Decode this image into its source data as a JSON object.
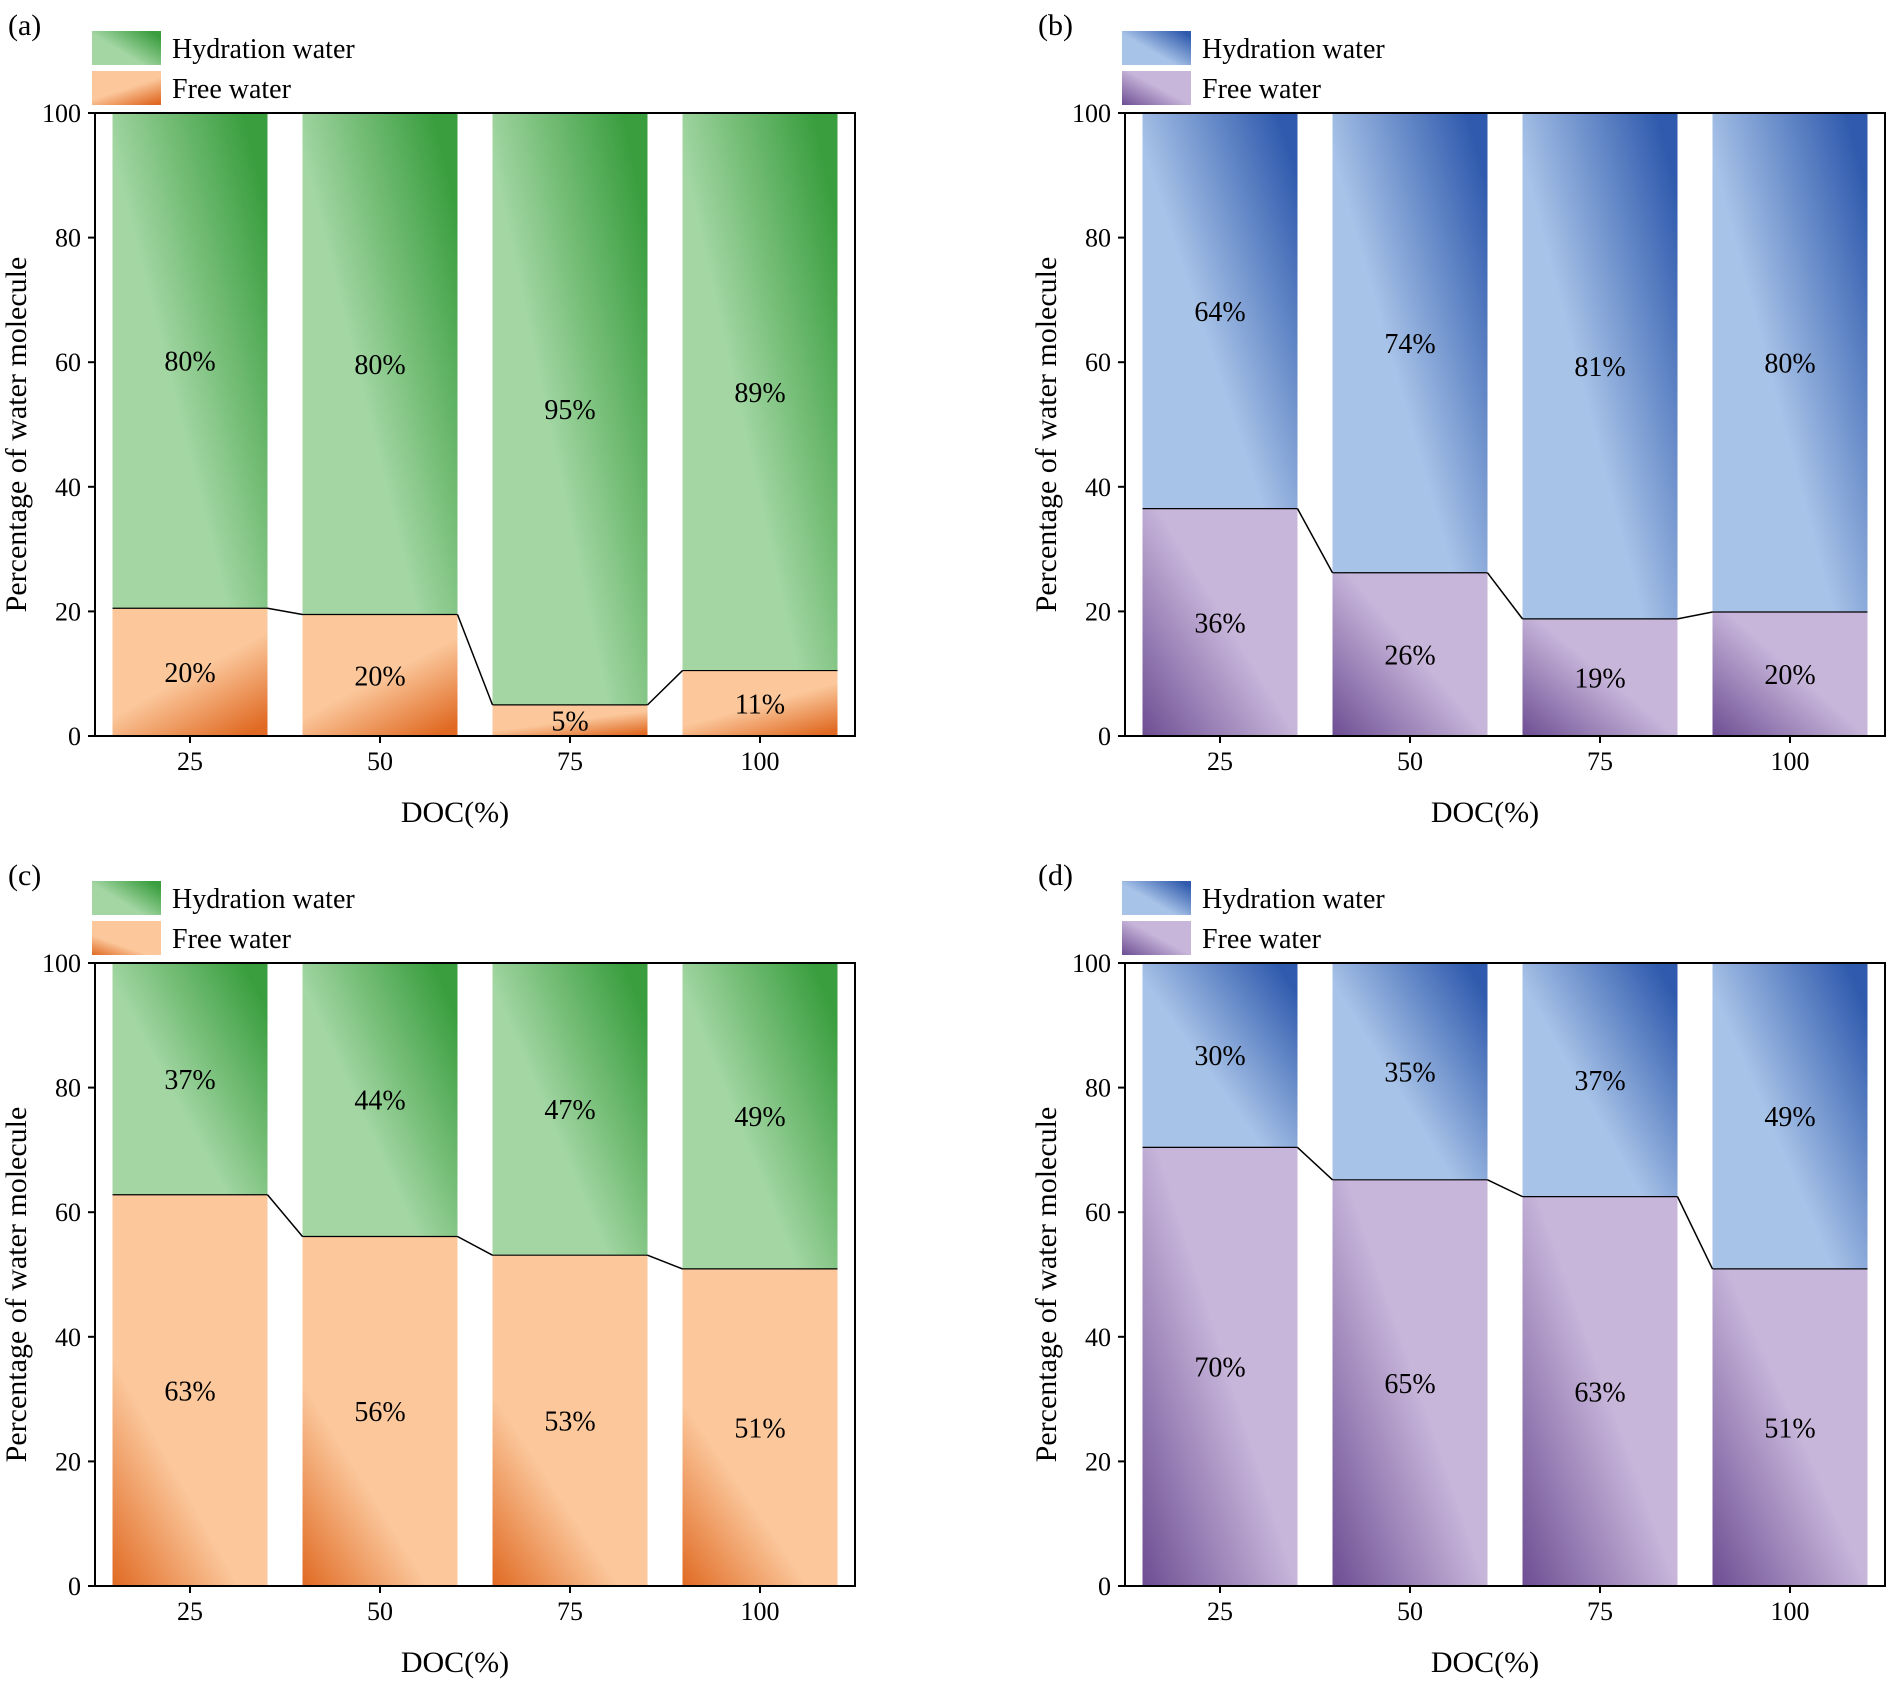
{
  "figure": {
    "caption": ""
  },
  "colors": {
    "green_light": "#a3d6a3",
    "green_dark": "#3a9e3f",
    "orange_light": "#fbc79b",
    "orange_dark": "#e06a23",
    "blue_light": "#a8c3e8",
    "blue_dark": "#2f5aad",
    "purple_light": "#c7b5da",
    "purple_dark": "#6d4e93",
    "axis": "#000000",
    "text": "#000000"
  },
  "chart_data": [
    {
      "panel_label": "(a)",
      "type": "bar",
      "stacked": true,
      "normalized": true,
      "theme": "green-orange",
      "categories": [
        "25",
        "50",
        "75",
        "100"
      ],
      "xlabel": "DOC(%)",
      "ylabel": "Percentage of water molecule",
      "ylim": [
        0,
        100
      ],
      "yticks": [
        "0",
        "20",
        "40",
        "60",
        "80",
        "100"
      ],
      "legend_position": "top-left",
      "series": [
        {
          "name": "Free water",
          "values": [
            20.5,
            19.5,
            5,
            10.5
          ],
          "labels": [
            "20%",
            "20%",
            "5%",
            "11%"
          ]
        },
        {
          "name": "Hydration water",
          "values": [
            79.5,
            80.5,
            95,
            89.5
          ],
          "labels": [
            "80%",
            "80%",
            "95%",
            "89%"
          ]
        }
      ]
    },
    {
      "panel_label": "(b)",
      "type": "bar",
      "stacked": true,
      "normalized": true,
      "theme": "blue-purple",
      "categories": [
        "25",
        "50",
        "75",
        "100"
      ],
      "xlabel": "DOC(%)",
      "ylabel": "Percentage of water molecule",
      "ylim": [
        0,
        100
      ],
      "yticks": [
        "0",
        "20",
        "40",
        "60",
        "80",
        "100"
      ],
      "legend_position": "top-left",
      "series": [
        {
          "name": "Free water",
          "values": [
            36.5,
            26.2,
            18.8,
            19.9
          ],
          "labels": [
            "36%",
            "26%",
            "19%",
            "20%"
          ]
        },
        {
          "name": "Hydration water",
          "values": [
            63.5,
            73.8,
            81.2,
            80.1
          ],
          "labels": [
            "64%",
            "74%",
            "81%",
            "80%"
          ]
        }
      ]
    },
    {
      "panel_label": "(c)",
      "type": "bar",
      "stacked": true,
      "normalized": true,
      "theme": "green-orange",
      "categories": [
        "25",
        "50",
        "75",
        "100"
      ],
      "xlabel": "DOC(%)",
      "ylabel": "Percentage of water molecule",
      "ylim": [
        0,
        100
      ],
      "yticks": [
        "0",
        "20",
        "40",
        "60",
        "80",
        "100"
      ],
      "legend_position": "top-left",
      "series": [
        {
          "name": "Free water",
          "values": [
            62.8,
            56.1,
            53.1,
            50.9
          ],
          "labels": [
            "63%",
            "56%",
            "53%",
            "51%"
          ]
        },
        {
          "name": "Hydration water",
          "values": [
            37.2,
            43.9,
            46.9,
            49.1
          ],
          "labels": [
            "37%",
            "44%",
            "47%",
            "49%"
          ]
        }
      ]
    },
    {
      "panel_label": "(d)",
      "type": "bar",
      "stacked": true,
      "normalized": true,
      "theme": "blue-purple",
      "categories": [
        "25",
        "50",
        "75",
        "100"
      ],
      "xlabel": "DOC(%)",
      "ylabel": "Percentage of water molecule",
      "ylim": [
        0,
        100
      ],
      "yticks": [
        "0",
        "20",
        "40",
        "60",
        "80",
        "100"
      ],
      "legend_position": "top-left",
      "series": [
        {
          "name": "Free water",
          "values": [
            70.4,
            65.2,
            62.5,
            50.9
          ],
          "labels": [
            "70%",
            "65%",
            "63%",
            "51%"
          ]
        },
        {
          "name": "Hydration water",
          "values": [
            29.6,
            34.8,
            37.5,
            49.1
          ],
          "labels": [
            "30%",
            "35%",
            "37%",
            "49%"
          ]
        }
      ]
    }
  ]
}
